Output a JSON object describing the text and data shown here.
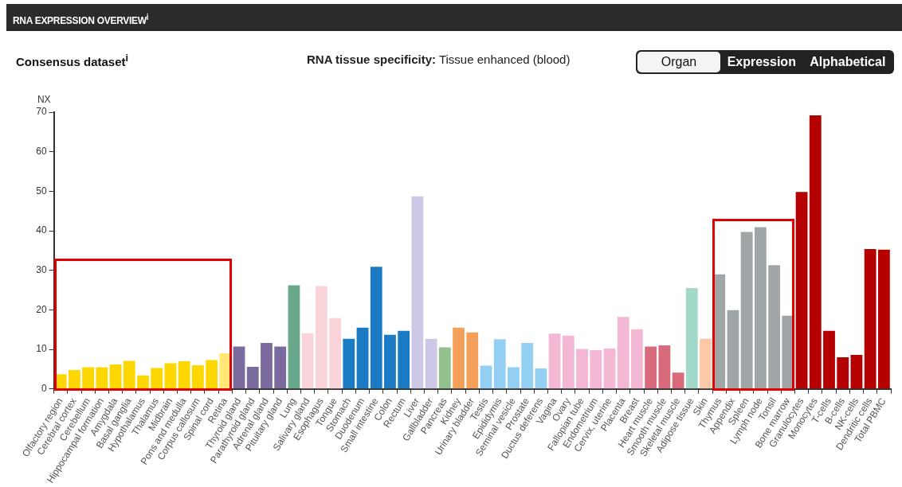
{
  "chart_data": {
    "type": "bar",
    "title": "RNA EXPRESSION OVERVIEW$^{i}$",
    "subtitle": "Consensus dataset$^{i}$",
    "ylabel": "NX",
    "annotations": [
      "RNA tissue specificity:",
      "Tissue enhanced (blood)",
      "Organ",
      "Expression",
      "Alphabetical"
    ],
    "categories": [
      "Olfactory region",
      "Cerebral cortex",
      "Cerebellum",
      "Hippocampal formation",
      "Amygdala",
      "Basal ganglia",
      "Hypothalamus",
      "Thalamus",
      "Midbrain",
      "Pons and medulla",
      "Corpus callosum",
      "Spinal cord",
      "Retina",
      "Thyroid gland",
      "Parathyroid gland",
      "Adrenal gland",
      "Pituitary gland",
      "Lung",
      "Salivary gland",
      "Esophagus",
      "Tongue",
      "Stomach",
      "Duodenum",
      "Small intestine",
      "Colon",
      "Rectum",
      "Liver",
      "Gallbladder",
      "Pancreas",
      "Kidney",
      "Urinary bladder",
      "Testis",
      "Epididymis",
      "Seminal vesicle",
      "Prostate",
      "Ductus deferens",
      "Vagina",
      "Ovary",
      "Fallopian tube",
      "Endometrium",
      "Cervix, uterine",
      "Placenta",
      "Breast",
      "Heart muscle",
      "Smooth muscle",
      "Skeletal muscle",
      "Adipose tissue",
      "Skin",
      "Thymus",
      "Appendix",
      "Spleen",
      "Lymph node",
      "Tonsil",
      "Bone marrow",
      "Granulocytes",
      "Monocytes",
      "T-cells",
      "B-cells",
      "NK-cells",
      "Dendritic cells",
      "Total PBMC"
    ],
    "values": [
      3.7,
      4.8,
      5.5,
      5.5,
      6.2,
      7.1,
      3.4,
      5.3,
      6.5,
      7.0,
      6.0,
      7.3,
      9.0,
      10.7,
      5.6,
      11.6,
      10.7,
      26.2,
      14.1,
      26.0,
      17.9,
      12.7,
      15.5,
      30.9,
      13.7,
      14.7,
      48.7,
      12.7,
      10.5,
      15.5,
      14.3,
      5.9,
      12.6,
      5.5,
      11.6,
      5.2,
      14.0,
      13.5,
      10.1,
      9.8,
      10.2,
      18.2,
      15.1,
      10.7,
      11.0,
      4.1,
      25.5,
      12.7,
      29.0,
      19.9,
      39.7,
      40.9,
      31.3,
      18.5,
      49.8,
      69.2,
      14.7,
      8.0,
      8.6,
      35.4,
      35.2
    ],
    "colors": [
      "#ffd700",
      "#ffd700",
      "#ffd700",
      "#ffd700",
      "#ffd700",
      "#ffd700",
      "#ffd700",
      "#ffd700",
      "#ffd700",
      "#ffd700",
      "#ffd700",
      "#ffd700",
      "#ffe873",
      "#7b6a9e",
      "#7b6a9e",
      "#7b6a9e",
      "#7b6a9e",
      "#6aa88c",
      "#fad4d8",
      "#fad4d8",
      "#fad4d8",
      "#1a7bc4",
      "#1a7bc4",
      "#1a7bc4",
      "#1a7bc4",
      "#1a7bc4",
      "#ccc8e5",
      "#ccc8e5",
      "#93c08c",
      "#f5a05a",
      "#f5a05a",
      "#93cff2",
      "#93cff2",
      "#93cff2",
      "#93cff2",
      "#93cff2",
      "#f5b8d4",
      "#f5b8d4",
      "#f5b8d4",
      "#f5b8d4",
      "#f5b8d4",
      "#f5b8d4",
      "#f5b8d4",
      "#d96a7c",
      "#d96a7c",
      "#d96a7c",
      "#a3d9c8",
      "#fdc8a8",
      "#a0a6a8",
      "#a0a6a8",
      "#a0a6a8",
      "#a0a6a8",
      "#a0a6a8",
      "#a0a6a8",
      "#b50000",
      "#b50000",
      "#b50000",
      "#b50000",
      "#b50000",
      "#b50000",
      "#b50000"
    ],
    "ylim": [
      0,
      70
    ],
    "yticks": [
      0,
      10,
      20,
      30,
      40,
      50,
      60,
      70
    ],
    "grid": false,
    "legend": false
  }
}
